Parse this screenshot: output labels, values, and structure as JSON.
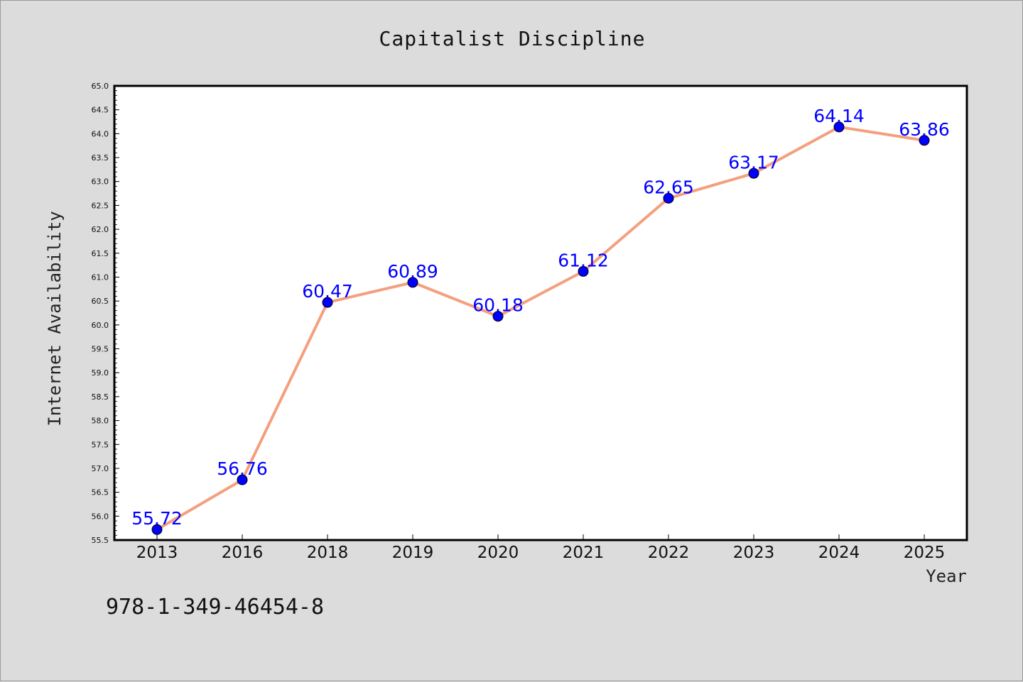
{
  "chart_data": {
    "type": "line",
    "title": "Capitalist Discipline",
    "xlabel": "Year",
    "ylabel": "Internet Availability",
    "categories": [
      "2013",
      "2016",
      "2018",
      "2019",
      "2020",
      "2021",
      "2022",
      "2023",
      "2024",
      "2025"
    ],
    "series": [
      {
        "values": [
          55.72,
          56.76,
          60.47,
          60.89,
          60.18,
          61.12,
          62.65,
          63.17,
          64.14,
          63.86
        ],
        "line_color": "#f4a07e",
        "marker_color": "#0000ff"
      }
    ],
    "data_labels": [
      "55.72",
      "56.76",
      "60.47",
      "60.89",
      "60.18",
      "61.12",
      "62.65",
      "63.17",
      "64.14",
      "63.86"
    ],
    "ylim": [
      55.5,
      65.0
    ],
    "yticks": [
      "55.5",
      "56.0",
      "56.5",
      "57.0",
      "57.5",
      "58.0",
      "58.5",
      "59.0",
      "59.5",
      "60.0",
      "60.5",
      "61.0",
      "61.5",
      "62.0",
      "62.5",
      "63.0",
      "63.5",
      "64.0",
      "64.5",
      "65.0"
    ],
    "grid": false,
    "legend": "none"
  },
  "footer": {
    "isbn": "978-1-349-46454-8"
  },
  "colors": {
    "background": "#dcdcdc",
    "plot_background": "#ffffff",
    "line": "#f4a07e",
    "marker": "#0000ff",
    "data_label": "#0000ff"
  }
}
